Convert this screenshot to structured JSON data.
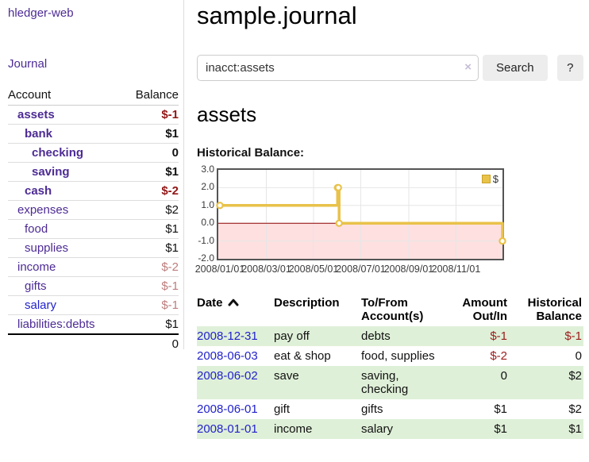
{
  "sidebar": {
    "app_title": "hledger-web",
    "journal_link": "Journal",
    "accounts_header": {
      "account": "Account",
      "balance": "Balance"
    },
    "accounts": [
      {
        "name": "assets",
        "balance": "$-1",
        "depth": 1,
        "active": true,
        "negative": "strong"
      },
      {
        "name": "bank",
        "balance": "$1",
        "depth": 2,
        "active": true
      },
      {
        "name": "checking",
        "balance": "0",
        "depth": 3,
        "active": true
      },
      {
        "name": "saving",
        "balance": "$1",
        "depth": 3,
        "active": true
      },
      {
        "name": "cash",
        "balance": "$-2",
        "depth": 2,
        "active": true,
        "negative": "strong"
      },
      {
        "name": "expenses",
        "balance": "$2",
        "depth": 1
      },
      {
        "name": "food",
        "balance": "$1",
        "depth": 2
      },
      {
        "name": "supplies",
        "balance": "$1",
        "depth": 2
      },
      {
        "name": "income",
        "balance": "$-2",
        "depth": 1,
        "negative": "soft"
      },
      {
        "name": "gifts",
        "balance": "$-1",
        "depth": 2,
        "negative": "soft"
      },
      {
        "name": "salary",
        "balance": "$-1",
        "depth": 2,
        "negative": "soft",
        "link_style": "blue"
      },
      {
        "name": "liabilities:debts",
        "balance": "$1",
        "depth": 1
      }
    ],
    "total": "0"
  },
  "main": {
    "title": "sample.journal",
    "search": {
      "value": "inacct:assets",
      "clear_icon": "×",
      "button_label": "Search",
      "help_label": "?"
    },
    "account_heading": "assets",
    "chart_label": "Historical Balance:"
  },
  "chart_data": {
    "type": "line",
    "title": "Historical Balance:",
    "series": [
      {
        "name": "$",
        "color": "#e9c24a",
        "step": true,
        "points": [
          [
            "2008-01-01",
            1
          ],
          [
            "2008-06-01",
            2
          ],
          [
            "2008-06-02",
            2
          ],
          [
            "2008-06-03",
            0
          ],
          [
            "2008-12-31",
            -1
          ]
        ]
      }
    ],
    "x_range": [
      "2008-01-01",
      "2008-12-31"
    ],
    "x_ticks": [
      "2008-01-01",
      "2008-03-01",
      "2008-05-01",
      "2008-07-01",
      "2008-09-01",
      "2008-11-01"
    ],
    "x_tick_labels": [
      "2008/01/01",
      "2008/03/01",
      "2008/05/01",
      "2008/07/01",
      "2008/09/01",
      "2008/11/01"
    ],
    "y_ticks": [
      3,
      2,
      1,
      0,
      -1,
      -2
    ],
    "y_tick_labels": [
      "3.0",
      "2.0",
      "1.0",
      "0.0",
      "-1.0",
      "-2.0"
    ],
    "ylim": [
      -2,
      3
    ],
    "grid": true,
    "legend_position": "top-right",
    "negative_fill": "rgba(255,0,0,0.12)",
    "zero_line_color": "#8b0000",
    "grid_color": "#e6e6e6"
  },
  "register": {
    "headers": [
      "Date",
      "Description",
      "To/From Account(s)",
      "Amount Out/In",
      "Historical Balance"
    ],
    "sort": "ascending",
    "rows": [
      {
        "date": "2008-12-31",
        "description": "pay off",
        "accounts": "debts",
        "amount": "$-1",
        "balance": "$-1",
        "amount_negative": true,
        "balance_negative": true
      },
      {
        "date": "2008-06-03",
        "description": "eat & shop",
        "accounts": "food, supplies",
        "amount": "$-2",
        "balance": "0",
        "amount_negative": true
      },
      {
        "date": "2008-06-02",
        "description": "save",
        "accounts": "saving, checking",
        "amount": "0",
        "balance": "$2"
      },
      {
        "date": "2008-06-01",
        "description": "gift",
        "accounts": "gifts",
        "amount": "$1",
        "balance": "$2"
      },
      {
        "date": "2008-01-01",
        "description": "income",
        "accounts": "salary",
        "amount": "$1",
        "balance": "$1"
      }
    ]
  }
}
